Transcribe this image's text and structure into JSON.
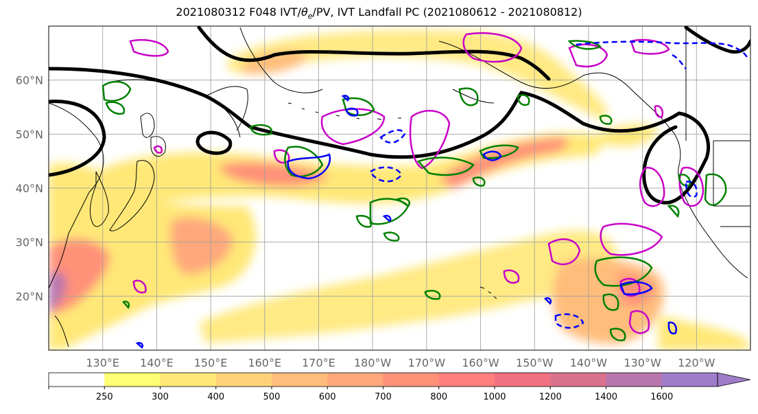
{
  "title": {
    "init": "2021080312",
    "forecast": "F048",
    "fields_prefix": "IVT/",
    "theta": "θ",
    "theta_sub": "e",
    "fields_suffix": "/PV, IVT Landfall PC (2021080612 - 2021080812)"
  },
  "map": {
    "projection": "PlateCarree",
    "lon_range": [
      120,
      250
    ],
    "lat_range": [
      10,
      70
    ],
    "lat_labels": [
      "60°N",
      "50°N",
      "40°N",
      "30°N",
      "20°N"
    ],
    "lat_values": [
      60,
      50,
      40,
      30,
      20
    ],
    "lon_labels": [
      "130°E",
      "140°E",
      "150°E",
      "160°E",
      "170°E",
      "180°W",
      "170°W",
      "160°W",
      "150°W",
      "140°W",
      "130°W",
      "120°W"
    ],
    "lon_values": [
      130,
      140,
      150,
      160,
      170,
      180,
      190,
      200,
      210,
      220,
      230,
      240
    ],
    "grid": true
  },
  "colorbar": {
    "levels": [
      "250",
      "300",
      "400",
      "500",
      "600",
      "700",
      "800",
      "1000",
      "1200",
      "1400",
      "1600"
    ],
    "colors": [
      "#ffff73",
      "#ffe877",
      "#ffd27a",
      "#ffbd7c",
      "#ffa87b",
      "#ff9179",
      "#ff7f7d",
      "#f0717f",
      "#d9728f",
      "#b876ad",
      "#9f7dc9"
    ],
    "extend": "max"
  },
  "colors": {
    "theta_e": "#000000",
    "pv_magenta": "#c800c8",
    "pv_green": "#008000",
    "pv_blue": "#0000ff"
  }
}
